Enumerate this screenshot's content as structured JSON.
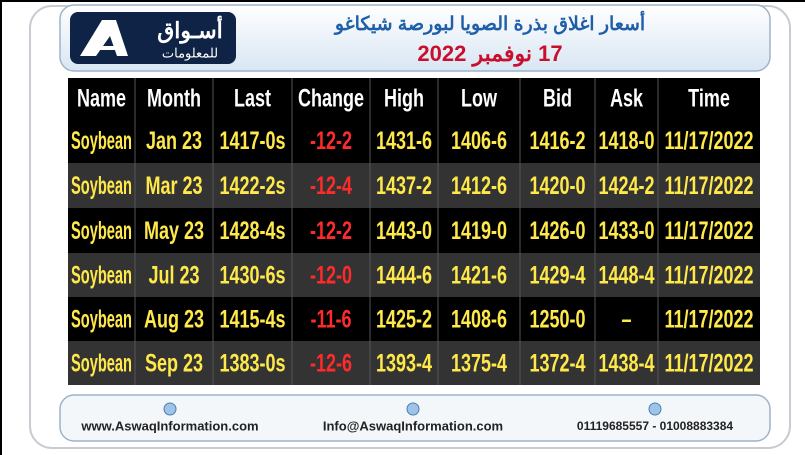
{
  "logo": {
    "name": "أسـواق",
    "tagline": "للمعلومات"
  },
  "header": {
    "title": "أسعار اغلاق بذرة الصويا لبورصة شيكاغو",
    "date": "17 نوفمبر 2022"
  },
  "table": {
    "columns": [
      "Name",
      "Month",
      "Last",
      "Change",
      "High",
      "Low",
      "Bid",
      "Ask",
      "Time"
    ],
    "rows": [
      [
        "Soybean",
        "Jan 23",
        "1417-0s",
        "-12-2",
        "1431-6",
        "1406-6",
        "1416-2",
        "1418-0",
        "11/17/2022"
      ],
      [
        "Soybean",
        "Mar 23",
        "1422-2s",
        "-12-4",
        "1437-2",
        "1412-6",
        "1420-0",
        "1424-2",
        "11/17/2022"
      ],
      [
        "Soybean",
        "May 23",
        "1428-4s",
        "-12-2",
        "1443-0",
        "1419-0",
        "1426-0",
        "1433-0",
        "11/17/2022"
      ],
      [
        "Soybean",
        "Jul 23",
        "1430-6s",
        "-12-0",
        "1444-6",
        "1421-6",
        "1429-4",
        "1448-4",
        "11/17/2022"
      ],
      [
        "Soybean",
        "Aug 23",
        "1415-4s",
        "-11-6",
        "1425-2",
        "1408-6",
        "1250-0",
        "–",
        "11/17/2022"
      ],
      [
        "Soybean",
        "Sep 23",
        "1383-0s",
        "-12-6",
        "1393-4",
        "1375-4",
        "1372-4",
        "1438-4",
        "11/17/2022"
      ]
    ]
  },
  "footer": {
    "website": "www.AswaqInformation.com",
    "email": "Info@AswaqInformation.com",
    "phone": "01119685557 - 01008883384"
  }
}
